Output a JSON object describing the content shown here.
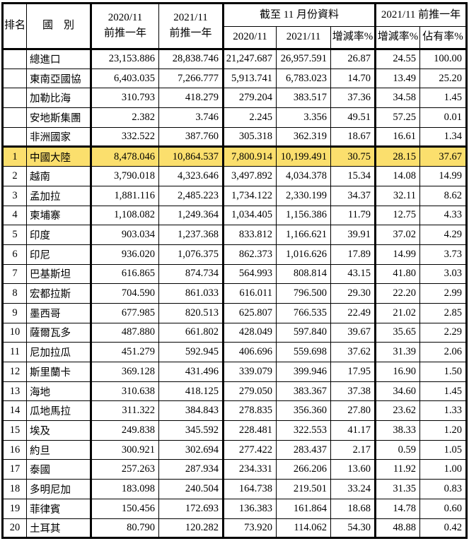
{
  "colors": {
    "highlight": "#fbdf6d",
    "border": "#000000",
    "background": "#ffffff"
  },
  "header": {
    "rank": "排名",
    "country": "國　別",
    "col3_line1": "2020/11",
    "col3_line2": "前推一年",
    "col4_line1": "2021/11",
    "col4_line2": "前推一年",
    "group_upto": "截至 11 月份資料",
    "upto_col1": "2020/11",
    "upto_col2": "2021/11",
    "upto_col3": "增減率%",
    "group_prev": "2021/11 前推一年",
    "prev_col1": "增減率%",
    "prev_col2": "佔有率%"
  },
  "table": {
    "rows": [
      {
        "rank": "",
        "country": "總進口",
        "values": [
          "23,153.886",
          "28,838.746",
          "21,247.687",
          "26,957.591",
          "26.87",
          "24.55",
          "100.00"
        ],
        "highlight": false,
        "section_start": false
      },
      {
        "rank": "",
        "country": "東南亞國協",
        "values": [
          "6,403.035",
          "7,266.777",
          "5,913.741",
          "6,783.023",
          "14.70",
          "13.49",
          "25.20"
        ],
        "highlight": false,
        "section_start": false
      },
      {
        "rank": "",
        "country": "加勒比海",
        "values": [
          "310.793",
          "418.279",
          "279.204",
          "383.517",
          "37.36",
          "34.58",
          "1.45"
        ],
        "highlight": false,
        "section_start": false
      },
      {
        "rank": "",
        "country": "安地斯集團",
        "values": [
          "2.382",
          "3.746",
          "2.245",
          "3.356",
          "49.51",
          "57.25",
          "0.01"
        ],
        "highlight": false,
        "section_start": false
      },
      {
        "rank": "",
        "country": "非洲國家",
        "values": [
          "332.522",
          "387.760",
          "305.318",
          "362.319",
          "18.67",
          "16.61",
          "1.34"
        ],
        "highlight": false,
        "section_start": false
      },
      {
        "rank": "1",
        "country": "中國大陸",
        "values": [
          "8,478.046",
          "10,864.537",
          "7,800.914",
          "10,199.491",
          "30.75",
          "28.15",
          "37.67"
        ],
        "highlight": true,
        "section_start": true
      },
      {
        "rank": "2",
        "country": "越南",
        "values": [
          "3,790.018",
          "4,323.646",
          "3,497.892",
          "4,034.378",
          "15.34",
          "14.08",
          "14.99"
        ],
        "highlight": false,
        "section_start": false
      },
      {
        "rank": "3",
        "country": "孟加拉",
        "values": [
          "1,881.116",
          "2,485.223",
          "1,734.122",
          "2,330.199",
          "34.37",
          "32.11",
          "8.62"
        ],
        "highlight": false,
        "section_start": false
      },
      {
        "rank": "4",
        "country": "柬埔寨",
        "values": [
          "1,108.082",
          "1,249.364",
          "1,034.405",
          "1,156.386",
          "11.79",
          "12.75",
          "4.33"
        ],
        "highlight": false,
        "section_start": false
      },
      {
        "rank": "5",
        "country": "印度",
        "values": [
          "903.034",
          "1,237.368",
          "833.812",
          "1,166.621",
          "39.91",
          "37.02",
          "4.29"
        ],
        "highlight": false,
        "section_start": false
      },
      {
        "rank": "6",
        "country": "印尼",
        "values": [
          "936.020",
          "1,076.375",
          "862.373",
          "1,016.626",
          "17.89",
          "14.99",
          "3.73"
        ],
        "highlight": false,
        "section_start": false
      },
      {
        "rank": "7",
        "country": "巴基斯坦",
        "values": [
          "616.865",
          "874.734",
          "564.993",
          "808.814",
          "43.15",
          "41.80",
          "3.03"
        ],
        "highlight": false,
        "section_start": false
      },
      {
        "rank": "8",
        "country": "宏都拉斯",
        "values": [
          "704.590",
          "861.033",
          "616.011",
          "796.500",
          "29.30",
          "22.20",
          "2.99"
        ],
        "highlight": false,
        "section_start": false
      },
      {
        "rank": "9",
        "country": "墨西哥",
        "values": [
          "677.985",
          "820.513",
          "625.807",
          "766.535",
          "22.49",
          "21.02",
          "2.85"
        ],
        "highlight": false,
        "section_start": false
      },
      {
        "rank": "10",
        "country": "薩爾瓦多",
        "values": [
          "487.880",
          "661.802",
          "428.049",
          "597.840",
          "39.67",
          "35.65",
          "2.29"
        ],
        "highlight": false,
        "section_start": false
      },
      {
        "rank": "11",
        "country": "尼加拉瓜",
        "values": [
          "451.279",
          "592.945",
          "406.696",
          "559.698",
          "37.62",
          "31.39",
          "2.06"
        ],
        "highlight": false,
        "section_start": false
      },
      {
        "rank": "12",
        "country": "斯里蘭卡",
        "values": [
          "369.128",
          "431.496",
          "339.079",
          "399.946",
          "17.95",
          "16.90",
          "1.50"
        ],
        "highlight": false,
        "section_start": false
      },
      {
        "rank": "13",
        "country": "海地",
        "values": [
          "310.638",
          "418.125",
          "279.050",
          "383.367",
          "37.38",
          "34.60",
          "1.45"
        ],
        "highlight": false,
        "section_start": false
      },
      {
        "rank": "14",
        "country": "瓜地馬拉",
        "values": [
          "311.322",
          "384.843",
          "278.835",
          "356.360",
          "27.80",
          "23.62",
          "1.33"
        ],
        "highlight": false,
        "section_start": false
      },
      {
        "rank": "15",
        "country": "埃及",
        "values": [
          "249.838",
          "345.592",
          "228.481",
          "322.553",
          "41.17",
          "38.33",
          "1.20"
        ],
        "highlight": false,
        "section_start": false
      },
      {
        "rank": "16",
        "country": "約旦",
        "values": [
          "300.921",
          "302.694",
          "277.422",
          "283.437",
          "2.17",
          "0.59",
          "1.05"
        ],
        "highlight": false,
        "section_start": false
      },
      {
        "rank": "17",
        "country": "泰國",
        "values": [
          "257.263",
          "287.934",
          "234.331",
          "266.206",
          "13.60",
          "11.92",
          "1.00"
        ],
        "highlight": false,
        "section_start": false
      },
      {
        "rank": "18",
        "country": "多明尼加",
        "values": [
          "183.098",
          "240.504",
          "164.738",
          "219.501",
          "33.24",
          "31.35",
          "0.83"
        ],
        "highlight": false,
        "section_start": false
      },
      {
        "rank": "19",
        "country": "菲律賓",
        "values": [
          "150.456",
          "172.693",
          "136.383",
          "161.864",
          "18.68",
          "14.78",
          "0.60"
        ],
        "highlight": false,
        "section_start": false
      },
      {
        "rank": "20",
        "country": "土耳其",
        "values": [
          "80.790",
          "120.282",
          "73.920",
          "114.062",
          "54.30",
          "48.88",
          "0.42"
        ],
        "highlight": false,
        "section_start": false
      }
    ]
  }
}
